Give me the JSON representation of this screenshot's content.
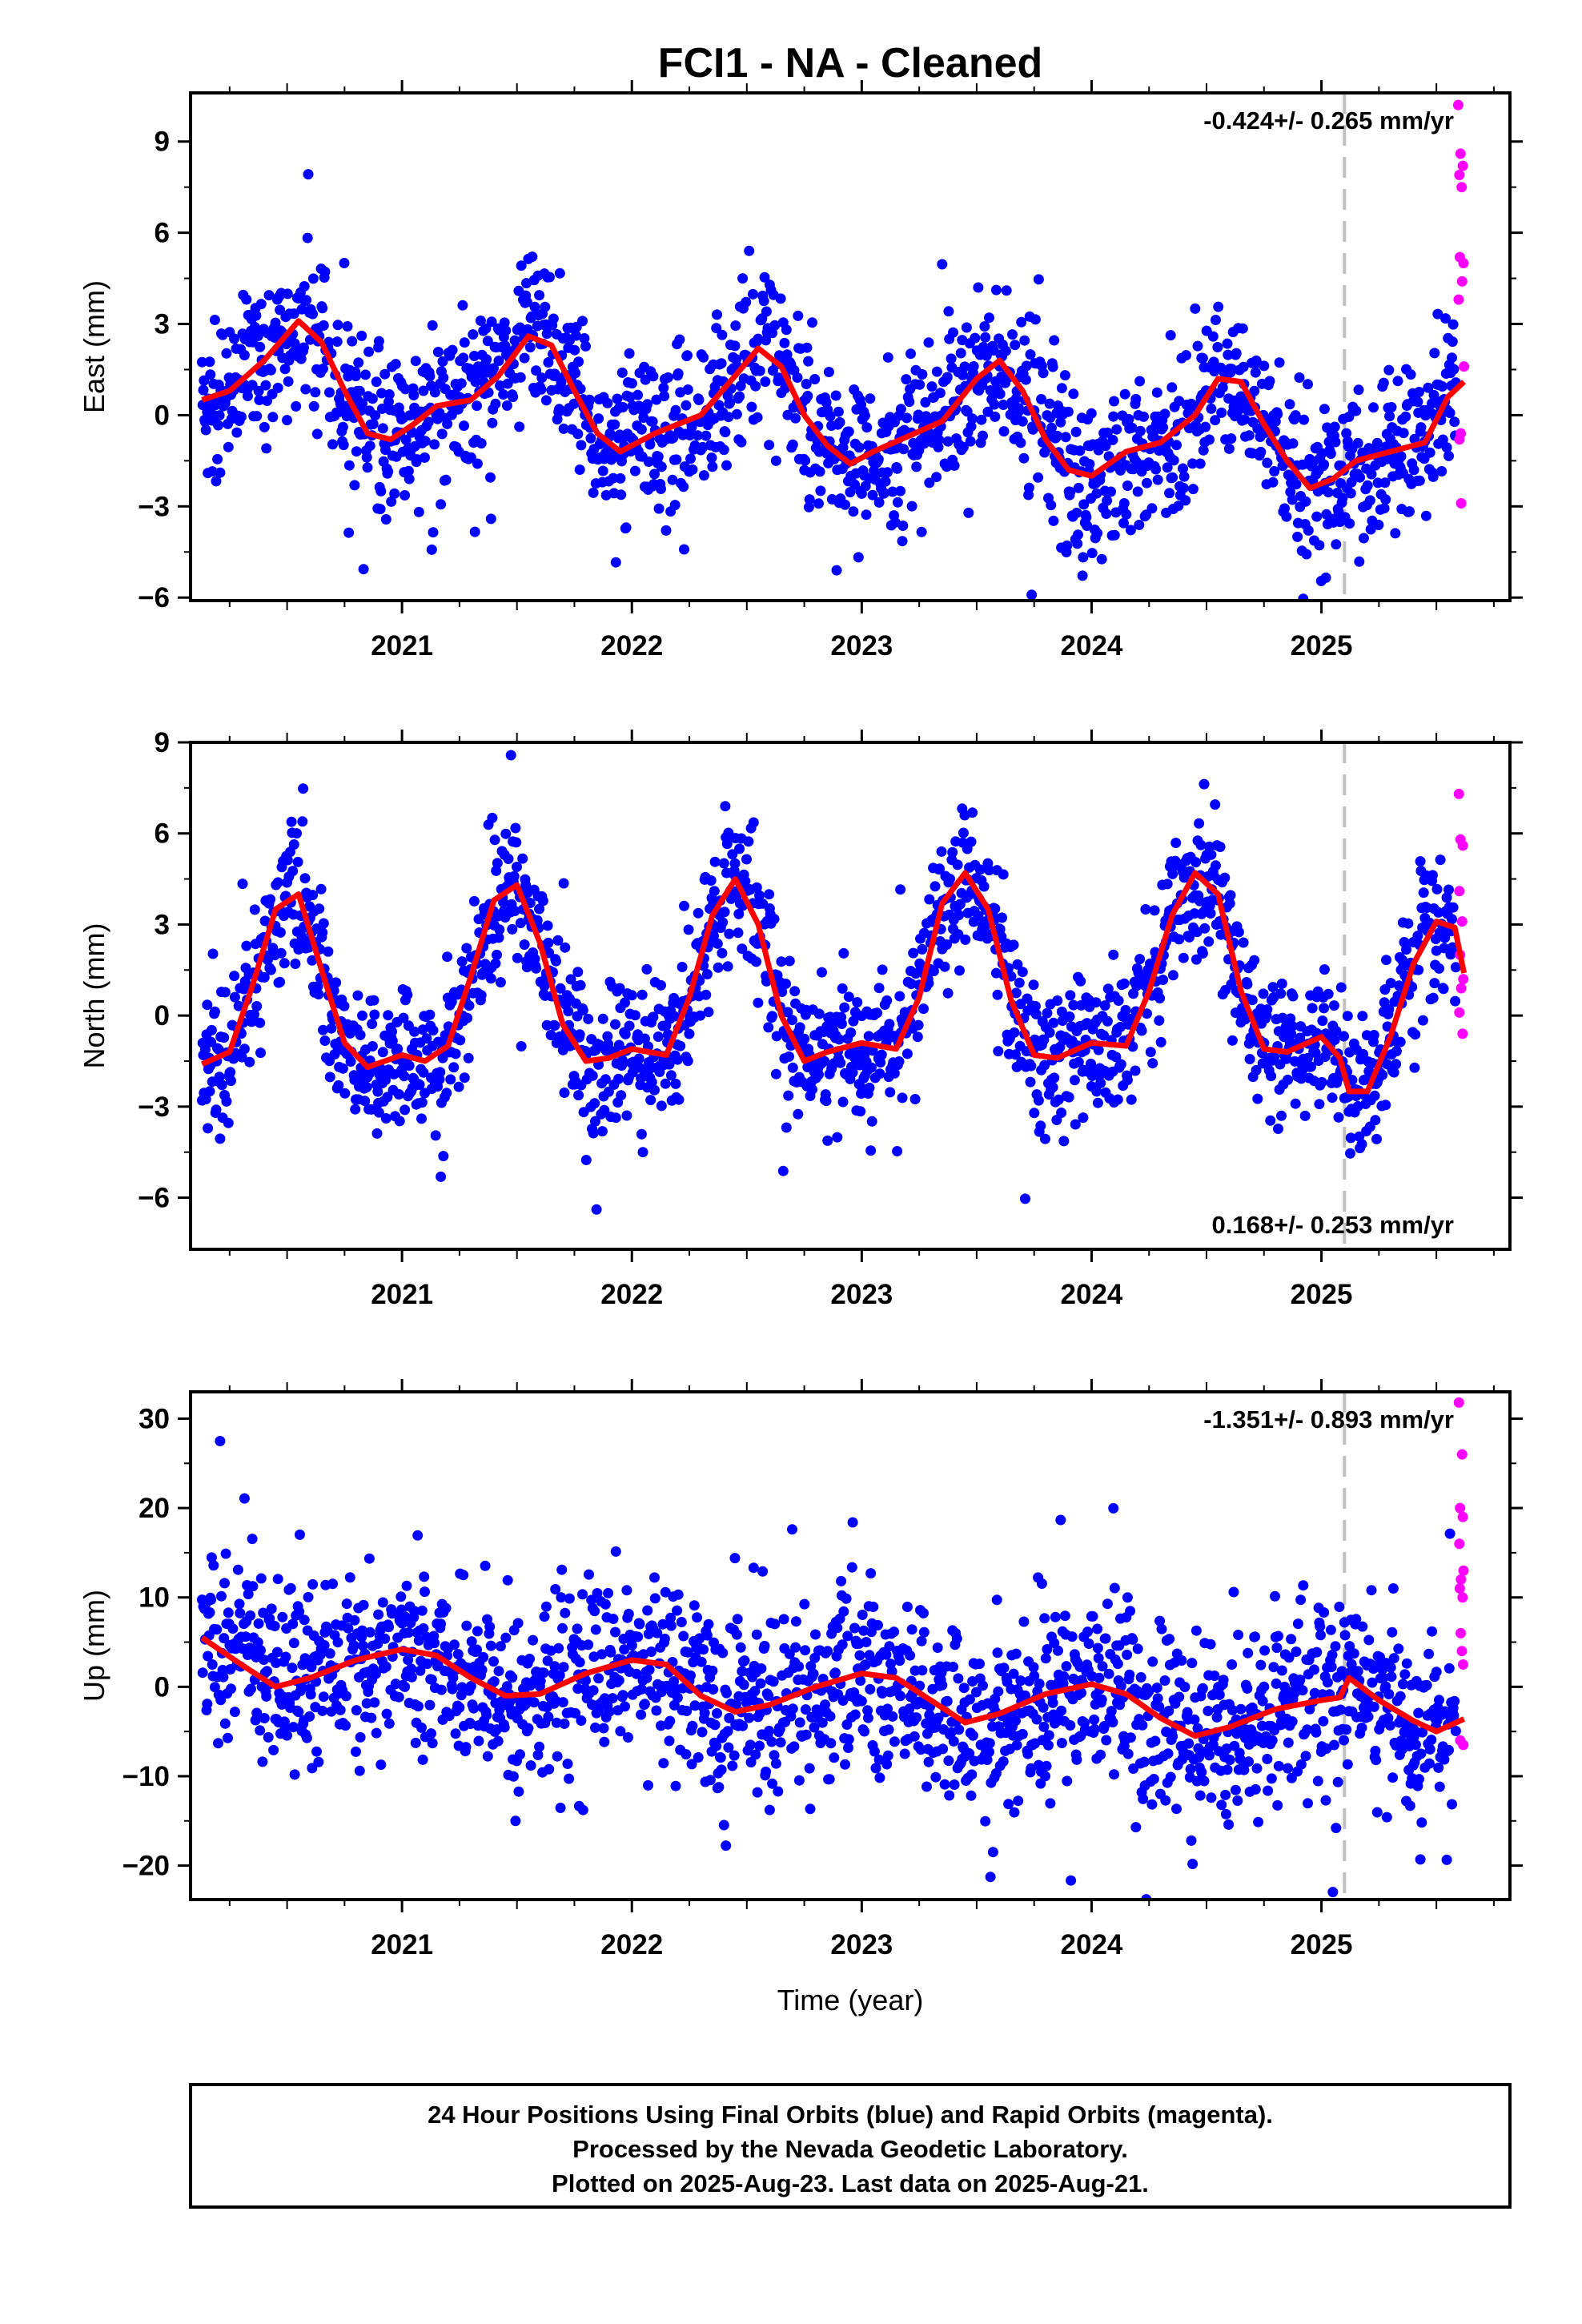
{
  "title": "FCI1  - NA - Cleaned",
  "colors": {
    "final": "#0000ff",
    "rapid": "#ff00ff",
    "model": "#ff0000",
    "break_line": "#c0c0c0"
  },
  "chart_data": [
    {
      "type": "scatter",
      "id": "east",
      "ylabel": "East (mm)",
      "xlabel": "",
      "ylim": [
        -6.1,
        10.6
      ],
      "yticks": [
        -6,
        -3,
        0,
        3,
        6,
        9
      ],
      "xlim": [
        2020.08,
        2025.82
      ],
      "xticks": [
        2021,
        2022,
        2023,
        2024,
        2025
      ],
      "rate_text": "-0.424+/- 0.265 mm/yr",
      "rate_position": "top-right",
      "break_epoch": 2025.1,
      "model_curve": {
        "x": [
          2020.13,
          2020.25,
          2020.4,
          2020.55,
          2020.65,
          2020.75,
          2020.85,
          2020.95,
          2021.05,
          2021.15,
          2021.3,
          2021.42,
          2021.55,
          2021.65,
          2021.75,
          2021.85,
          2021.95,
          2022.1,
          2022.3,
          2022.45,
          2022.55,
          2022.65,
          2022.75,
          2022.85,
          2022.95,
          2023.05,
          2023.2,
          2023.35,
          2023.5,
          2023.6,
          2023.7,
          2023.8,
          2023.9,
          2024.0,
          2024.15,
          2024.3,
          2024.45,
          2024.55,
          2024.65,
          2024.75,
          2024.85,
          2024.95,
          2025.05,
          2025.15,
          2025.3,
          2025.45,
          2025.55,
          2025.62
        ],
        "y": [
          0.5,
          0.8,
          1.8,
          3.1,
          2.4,
          0.8,
          -0.6,
          -0.8,
          -0.3,
          0.3,
          0.5,
          1.3,
          2.6,
          2.3,
          0.8,
          -0.6,
          -1.2,
          -0.6,
          0.0,
          1.3,
          2.2,
          1.6,
          0.0,
          -1.0,
          -1.6,
          -1.2,
          -0.7,
          -0.2,
          1.2,
          1.8,
          0.8,
          -0.8,
          -1.8,
          -2.0,
          -1.2,
          -0.9,
          0.0,
          1.2,
          1.1,
          -0.3,
          -1.5,
          -2.4,
          -2.1,
          -1.5,
          -1.2,
          -0.9,
          0.6,
          1.1
        ]
      },
      "annual_amplitude": 1.6,
      "scatter_sd": 1.3,
      "rapid_points": [
        {
          "x": 2025.595,
          "y": 10.2
        },
        {
          "x": 2025.605,
          "y": 8.6
        },
        {
          "x": 2025.615,
          "y": 8.2
        },
        {
          "x": 2025.6,
          "y": 7.9
        },
        {
          "x": 2025.61,
          "y": 7.5
        },
        {
          "x": 2025.602,
          "y": 5.2
        },
        {
          "x": 2025.618,
          "y": 5.0
        },
        {
          "x": 2025.612,
          "y": 4.4
        },
        {
          "x": 2025.597,
          "y": 3.8
        },
        {
          "x": 2025.62,
          "y": 1.6
        },
        {
          "x": 2025.606,
          "y": -0.6
        },
        {
          "x": 2025.6,
          "y": -0.8
        },
        {
          "x": 2025.608,
          "y": -2.9
        }
      ]
    },
    {
      "type": "scatter",
      "id": "north",
      "ylabel": "North (mm)",
      "xlabel": "",
      "ylim": [
        -7.7,
        9.0
      ],
      "yticks": [
        -6,
        -3,
        0,
        3,
        6,
        9
      ],
      "xlim": [
        2020.08,
        2025.82
      ],
      "xticks": [
        2021,
        2022,
        2023,
        2024,
        2025
      ],
      "rate_text": "0.168+/- 0.253 mm/yr",
      "rate_position": "bottom-right",
      "break_epoch": 2025.1,
      "model_curve": {
        "x": [
          2020.13,
          2020.25,
          2020.35,
          2020.45,
          2020.55,
          2020.65,
          2020.75,
          2020.85,
          2021.0,
          2021.1,
          2021.2,
          2021.3,
          2021.4,
          2021.5,
          2021.6,
          2021.7,
          2021.8,
          2021.9,
          2022.0,
          2022.15,
          2022.25,
          2022.35,
          2022.45,
          2022.55,
          2022.65,
          2022.75,
          2022.85,
          2023.0,
          2023.15,
          2023.25,
          2023.35,
          2023.45,
          2023.55,
          2023.65,
          2023.75,
          2023.85,
          2024.0,
          2024.15,
          2024.25,
          2024.35,
          2024.45,
          2024.55,
          2024.65,
          2024.75,
          2024.85,
          2025.0,
          2025.08,
          2025.12,
          2025.2,
          2025.3,
          2025.4,
          2025.5,
          2025.58,
          2025.62
        ],
        "y": [
          -1.6,
          -1.2,
          1.0,
          3.5,
          4.0,
          1.5,
          -0.9,
          -1.7,
          -1.3,
          -1.5,
          -1.0,
          1.3,
          3.8,
          4.3,
          2.4,
          -0.3,
          -1.5,
          -1.4,
          -1.1,
          -1.3,
          0.6,
          3.3,
          4.5,
          3.0,
          0.0,
          -1.5,
          -1.2,
          -0.9,
          -1.1,
          0.6,
          3.7,
          4.7,
          3.5,
          0.5,
          -1.3,
          -1.4,
          -0.9,
          -1.0,
          0.8,
          3.3,
          4.7,
          4.0,
          0.8,
          -1.1,
          -1.2,
          -0.7,
          -1.4,
          -2.5,
          -2.5,
          -0.7,
          1.7,
          3.1,
          2.9,
          1.4
        ]
      },
      "annual_amplitude": 0,
      "scatter_sd": 1.2,
      "rapid_points": [
        {
          "x": 2025.598,
          "y": 7.3
        },
        {
          "x": 2025.605,
          "y": 5.8
        },
        {
          "x": 2025.615,
          "y": 5.6
        },
        {
          "x": 2025.6,
          "y": 4.1
        },
        {
          "x": 2025.612,
          "y": 3.1
        },
        {
          "x": 2025.603,
          "y": 2.0
        },
        {
          "x": 2025.617,
          "y": 1.2
        },
        {
          "x": 2025.608,
          "y": 0.9
        },
        {
          "x": 2025.6,
          "y": 0.1
        },
        {
          "x": 2025.614,
          "y": -0.6
        }
      ]
    },
    {
      "type": "scatter",
      "id": "up",
      "ylabel": "Up (mm)",
      "xlabel": "Time (year)",
      "ylim": [
        -23.8,
        33.0
      ],
      "yticks": [
        -20,
        -10,
        0,
        10,
        20,
        30
      ],
      "xlim": [
        2020.08,
        2025.82
      ],
      "xticks": [
        2021,
        2022,
        2023,
        2024,
        2025
      ],
      "rate_text": "-1.351+/- 0.893 mm/yr",
      "rate_position": "top-right",
      "break_epoch": 2025.1,
      "model_curve": {
        "x": [
          2020.13,
          2020.3,
          2020.45,
          2020.6,
          2020.8,
          2021.0,
          2021.15,
          2021.3,
          2021.45,
          2021.6,
          2021.8,
          2022.0,
          2022.15,
          2022.3,
          2022.45,
          2022.6,
          2022.8,
          2023.0,
          2023.15,
          2023.3,
          2023.45,
          2023.6,
          2023.8,
          2024.0,
          2024.15,
          2024.3,
          2024.45,
          2024.6,
          2024.8,
          2025.0,
          2025.08,
          2025.12,
          2025.25,
          2025.4,
          2025.5,
          2025.62
        ],
        "y": [
          5.5,
          2.5,
          0.0,
          1.0,
          3.0,
          4.2,
          3.5,
          1.0,
          -1.0,
          -0.8,
          1.5,
          3.0,
          2.5,
          -1.0,
          -2.8,
          -2.0,
          0.0,
          1.5,
          1.0,
          -1.5,
          -4.0,
          -3.0,
          -0.8,
          0.3,
          -0.8,
          -3.5,
          -5.5,
          -4.5,
          -2.5,
          -1.5,
          -1.2,
          1.0,
          -1.5,
          -3.8,
          -5.0,
          -3.6
        ]
      },
      "annual_amplitude": 0,
      "scatter_sd": 5.2,
      "rapid_points": [
        {
          "x": 2025.598,
          "y": 31.8
        },
        {
          "x": 2025.612,
          "y": 26.0
        },
        {
          "x": 2025.603,
          "y": 20.0
        },
        {
          "x": 2025.615,
          "y": 19.0
        },
        {
          "x": 2025.6,
          "y": 16.0
        },
        {
          "x": 2025.618,
          "y": 13.0
        },
        {
          "x": 2025.607,
          "y": 12.0
        },
        {
          "x": 2025.602,
          "y": 11.0
        },
        {
          "x": 2025.614,
          "y": 10.0
        },
        {
          "x": 2025.606,
          "y": 6.0
        },
        {
          "x": 2025.611,
          "y": 4.0
        },
        {
          "x": 2025.616,
          "y": 2.5
        },
        {
          "x": 2025.604,
          "y": -6.0
        },
        {
          "x": 2025.617,
          "y": -6.5
        }
      ]
    }
  ],
  "footer": {
    "line1": "24 Hour Positions Using Final Orbits (blue) and Rapid Orbits (magenta).",
    "line2": "Processed by the Nevada Geodetic Laboratory.",
    "line3": "Plotted on 2025-Aug-23. Last data on 2025-Aug-21."
  }
}
